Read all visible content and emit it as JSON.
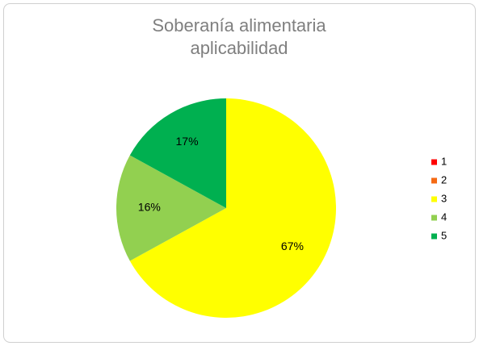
{
  "chart_data": {
    "type": "pie",
    "title": "Soberanía alimentaria aplicabilidad",
    "categories": [
      "1",
      "2",
      "3",
      "4",
      "5"
    ],
    "values": [
      0,
      0,
      67,
      16,
      17
    ],
    "value_labels": [
      null,
      null,
      "67%",
      "16%",
      "17%"
    ],
    "colors": [
      "#ff0000",
      "#f56a14",
      "#ffff00",
      "#92d050",
      "#00b050"
    ],
    "legend": "right"
  }
}
